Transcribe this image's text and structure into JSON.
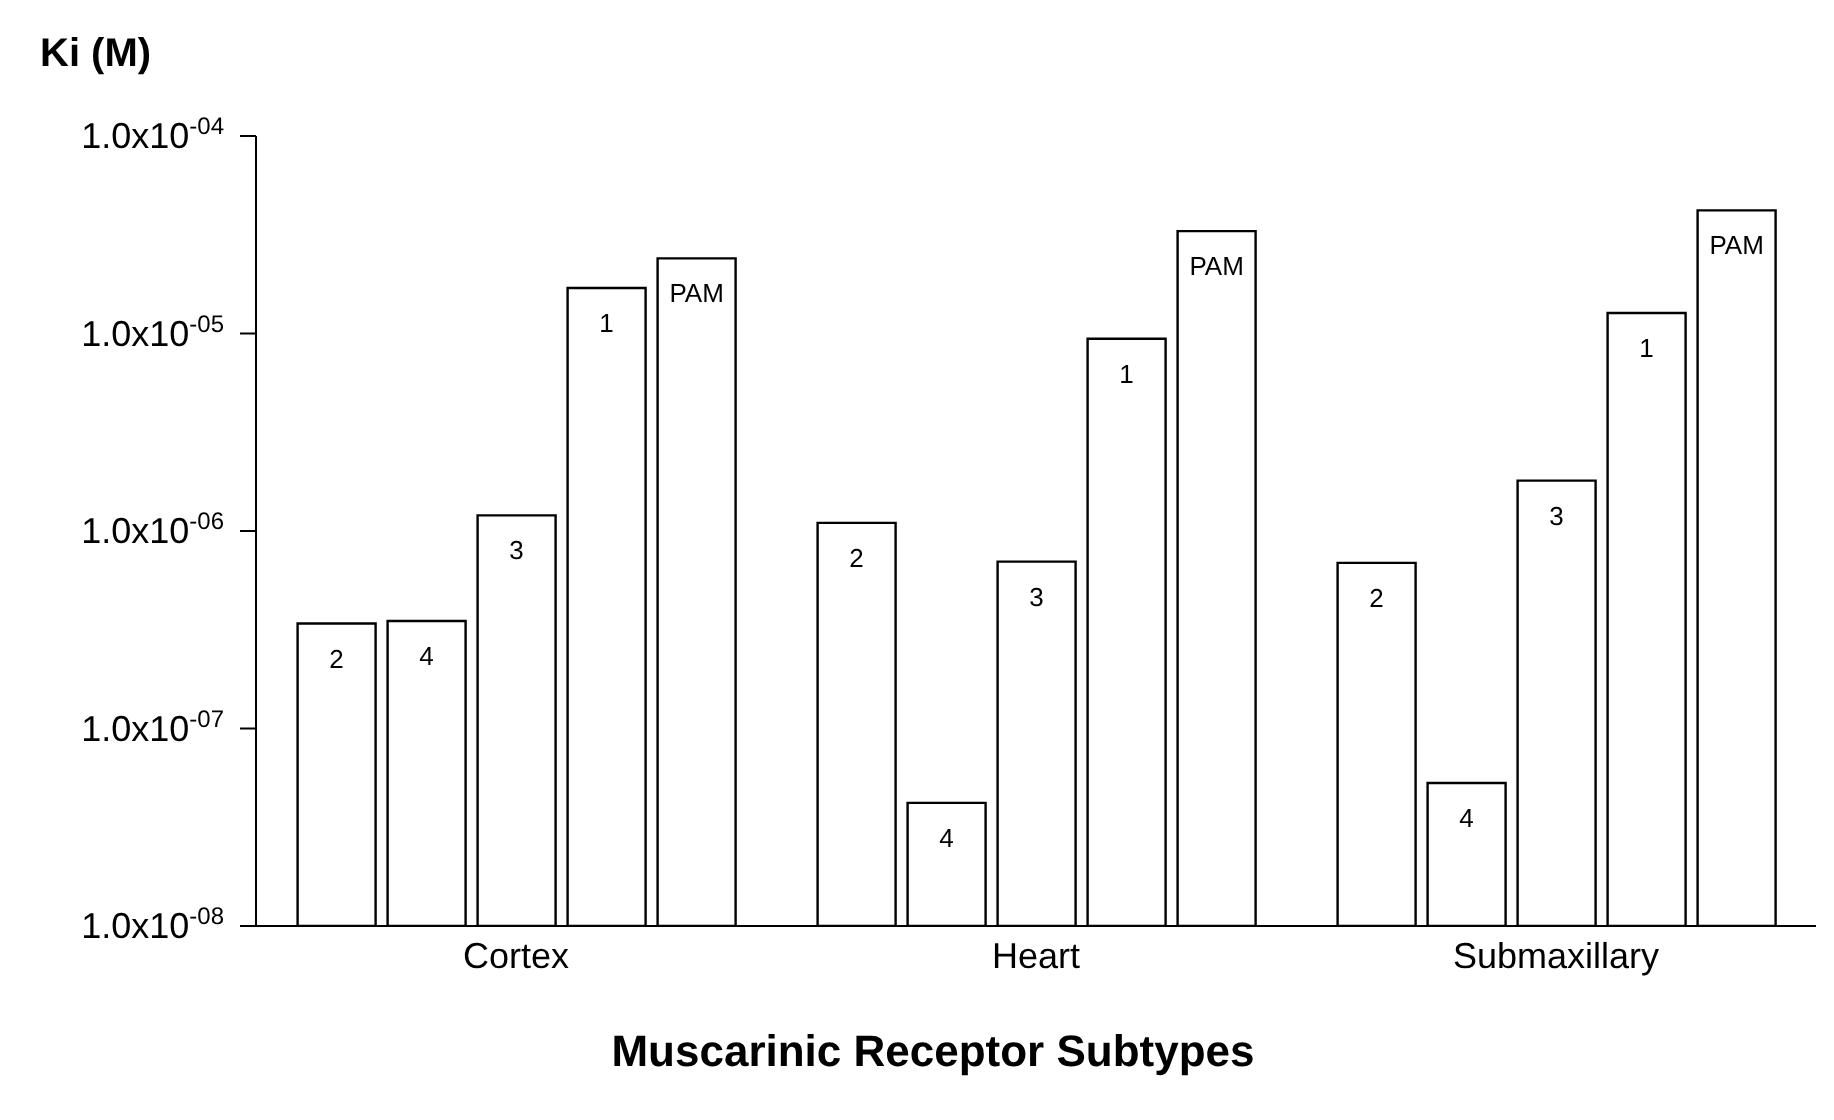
{
  "chart_data": {
    "type": "bar",
    "xlabel": "Muscarinic Receptor Subtypes",
    "ylabel": "Ki (M)",
    "log": "y",
    "categories": [
      "Cortex",
      "Heart",
      "Submaxillary"
    ],
    "series": [
      {
        "name": "2",
        "color": "#ffffff",
        "values": [
          3.4e-07,
          1.1e-06,
          6.9e-07
        ]
      },
      {
        "name": "4",
        "color": "#ffffff",
        "values": [
          3.5e-07,
          4.2e-08,
          5.3e-08
        ]
      },
      {
        "name": "3",
        "color": "#ffffff",
        "values": [
          1.2e-06,
          7e-07,
          1.8e-06
        ]
      },
      {
        "name": "1",
        "color": "#ffffff",
        "values": [
          1.7e-05,
          9.4e-06,
          1.27e-05
        ]
      },
      {
        "name": "PAM",
        "color": "#ffffff",
        "values": [
          2.4e-05,
          3.3e-05,
          4.2e-05
        ]
      }
    ],
    "ylim": [
      1e-08,
      0.0001
    ],
    "yticks": [
      {
        "value": 1e-08,
        "label": "1.0x10$^{-08}$"
      },
      {
        "value": 1e-07,
        "label": "1.0x10$^{-07}$"
      },
      {
        "value": 1e-06,
        "label": "1.0x10$^{-06}$"
      },
      {
        "value": 1e-05,
        "label": "1.0x10$^{-05}$"
      },
      {
        "value": 0.0001,
        "label": "1.0x10$^{-04}$"
      }
    ]
  }
}
